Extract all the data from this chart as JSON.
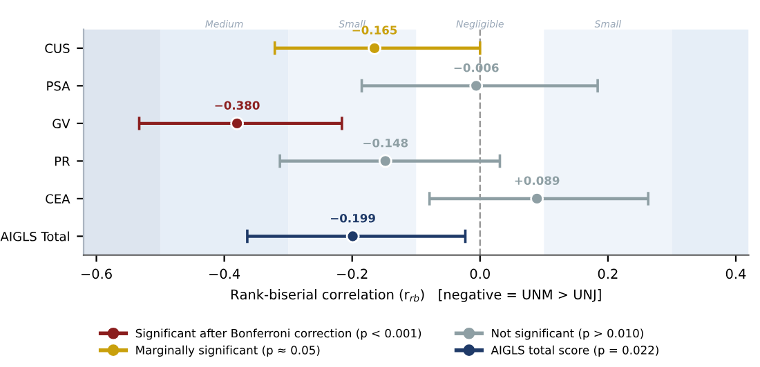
{
  "chart_data": {
    "type": "scatter",
    "orientation": "horizontal",
    "categories": [
      "CUS",
      "PSA",
      "GV",
      "PR",
      "CEA",
      "AIGLS Total"
    ],
    "series": [
      {
        "name": "Significant after Bonferroni correction (p < 0.001)",
        "color": "#8b1e1e",
        "values": [
          null,
          null,
          -0.38,
          null,
          null,
          null
        ],
        "errors": [
          null,
          null,
          [
            -0.533,
            -0.216
          ],
          null,
          null,
          null
        ],
        "value_labels": [
          null,
          null,
          "−0.380",
          null,
          null,
          null
        ]
      },
      {
        "name": "Marginally significant (p ≈ 0.05)",
        "color": "#c9a00c",
        "values": [
          -0.165,
          null,
          null,
          null,
          null,
          null
        ],
        "errors": [
          [
            -0.321,
            0.0
          ],
          null,
          null,
          null,
          null,
          null
        ],
        "value_labels": [
          "−0.165",
          null,
          null,
          null,
          null,
          null
        ]
      },
      {
        "name": "Not significant (p > 0.010)",
        "color": "#8e9fa4",
        "values": [
          null,
          -0.006,
          null,
          -0.148,
          0.089,
          null
        ],
        "errors": [
          null,
          [
            -0.185,
            0.184
          ],
          null,
          [
            -0.313,
            0.031
          ],
          [
            -0.079,
            0.263
          ],
          null
        ],
        "value_labels": [
          null,
          "−0.006",
          null,
          "−0.148",
          "+0.089",
          null
        ]
      },
      {
        "name": "AIGLS total score (p = 0.022)",
        "color": "#1f3a68",
        "values": [
          null,
          null,
          null,
          null,
          null,
          -0.199
        ],
        "errors": [
          null,
          null,
          null,
          null,
          null,
          [
            -0.364,
            -0.023
          ]
        ],
        "value_labels": [
          null,
          null,
          null,
          null,
          null,
          "−0.199"
        ]
      }
    ],
    "xlabel": "Rank-biserial correlation (r$_{rb}$)   [negative = UNM > UNJ]",
    "xlim": [
      -0.62,
      0.42
    ],
    "xticks": [
      {
        "value": -0.6,
        "label": "−0.6"
      },
      {
        "value": -0.4,
        "label": "−0.4"
      },
      {
        "value": -0.2,
        "label": "−0.2"
      },
      {
        "value": 0.0,
        "label": "0.0"
      },
      0.2,
      0.4
    ],
    "bands": [
      {
        "axis": "x",
        "from": -0.62,
        "to": -0.5,
        "color": "#dde5ef"
      },
      {
        "axis": "x",
        "from": -0.5,
        "to": -0.3,
        "label": "Medium",
        "color": "#e6eef7"
      },
      {
        "axis": "x",
        "from": -0.3,
        "to": -0.1,
        "label": "Small",
        "color": "#eff4fa"
      },
      {
        "axis": "x",
        "from": 0.1,
        "to": 0.3,
        "label": "Small",
        "color": "#eff4fa"
      },
      {
        "axis": "x",
        "from": 0.3,
        "to": 0.42,
        "color": "#e6eef7"
      }
    ],
    "ref_lines": [
      {
        "axis": "x",
        "value": 0.0,
        "color": "#999999",
        "line_style": "dashed"
      }
    ],
    "annotations": [
      {
        "text": "Negligible",
        "x": 0.0
      }
    ],
    "marker": "circle",
    "legend": "bottom",
    "grid": false
  }
}
